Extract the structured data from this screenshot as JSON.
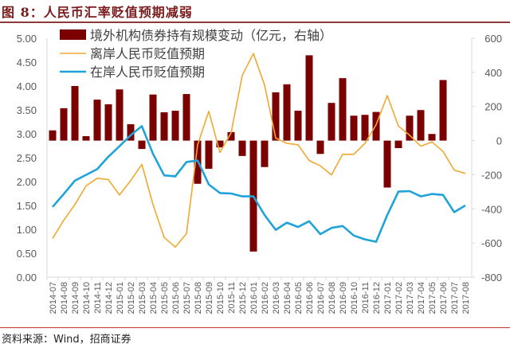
{
  "title": "图 8：人民币汇率贬值预期减弱",
  "source": "资料来源：Wind，招商证券",
  "chart_data": {
    "type": "bar+line",
    "categories": [
      "2014-07",
      "2014-08",
      "2014-09",
      "2014-10",
      "2014-11",
      "2014-12",
      "2015-01",
      "2015-02",
      "2015-03",
      "2015-04",
      "2015-05",
      "2015-06",
      "2015-07",
      "2015-08",
      "2015-09",
      "2015-10",
      "2015-11",
      "2015-12",
      "2016-01",
      "2016-02",
      "2016-03",
      "2016-04",
      "2016-05",
      "2016-06",
      "2016-07",
      "2016-08",
      "2016-09",
      "2016-10",
      "2016-11",
      "2016-12",
      "2017-01",
      "2017-02",
      "2017-03",
      "2017-04",
      "2017-05",
      "2017-06",
      "2017-07",
      "2017-08"
    ],
    "left_axis": {
      "ylim": [
        0,
        5
      ],
      "ticks": [
        "0.00",
        "0.50",
        "1.00",
        "1.50",
        "2.00",
        "2.50",
        "3.00",
        "3.50",
        "4.00",
        "4.50",
        "5.00"
      ]
    },
    "right_axis": {
      "ylim": [
        -800,
        600
      ],
      "ticks": [
        "-800",
        "-600",
        "-400",
        "-200",
        "0",
        "200",
        "400",
        "600"
      ]
    },
    "legend_position": "top-left",
    "grid": false,
    "series": [
      {
        "name": "境外机构债券持有规模变动（亿元，右轴）",
        "type": "bar",
        "axis": "right",
        "color": "#7b0000",
        "values": [
          60,
          190,
          320,
          26,
          240,
          213,
          300,
          96,
          -49,
          270,
          166,
          175,
          273,
          -253,
          -165,
          -40,
          50,
          -90,
          -650,
          -155,
          283,
          330,
          175,
          500,
          -78,
          221,
          366,
          146,
          151,
          168,
          -275,
          -44,
          146,
          179,
          39,
          355,
          null,
          null
        ]
      },
      {
        "name": "离岸人民币贬值预期",
        "type": "line",
        "axis": "left",
        "color": "#f0a830",
        "values": [
          0.81,
          1.19,
          1.52,
          1.91,
          2.07,
          2.04,
          1.72,
          2.02,
          2.36,
          1.52,
          0.83,
          0.63,
          0.91,
          2.77,
          3.47,
          2.61,
          3.02,
          4.22,
          4.68,
          4.02,
          2.91,
          2.8,
          2.77,
          2.44,
          2.33,
          2.14,
          2.57,
          2.57,
          2.8,
          3.19,
          3.8,
          3.16,
          2.97,
          2.74,
          2.83,
          2.63,
          2.24,
          2.17
        ]
      },
      {
        "name": "在岸人民币贬值预期",
        "type": "line",
        "axis": "left",
        "color": "#1fa3d8",
        "values": [
          1.47,
          1.74,
          2.02,
          2.14,
          2.26,
          2.52,
          2.74,
          2.97,
          3.16,
          2.58,
          2.13,
          2.11,
          2.41,
          2.44,
          1.94,
          1.76,
          1.75,
          1.69,
          1.69,
          1.3,
          0.99,
          1.14,
          1.05,
          1.17,
          0.9,
          1.03,
          1.07,
          0.87,
          0.79,
          0.74,
          1.3,
          1.79,
          1.8,
          1.69,
          1.74,
          1.72,
          1.36,
          1.5
        ]
      }
    ]
  }
}
